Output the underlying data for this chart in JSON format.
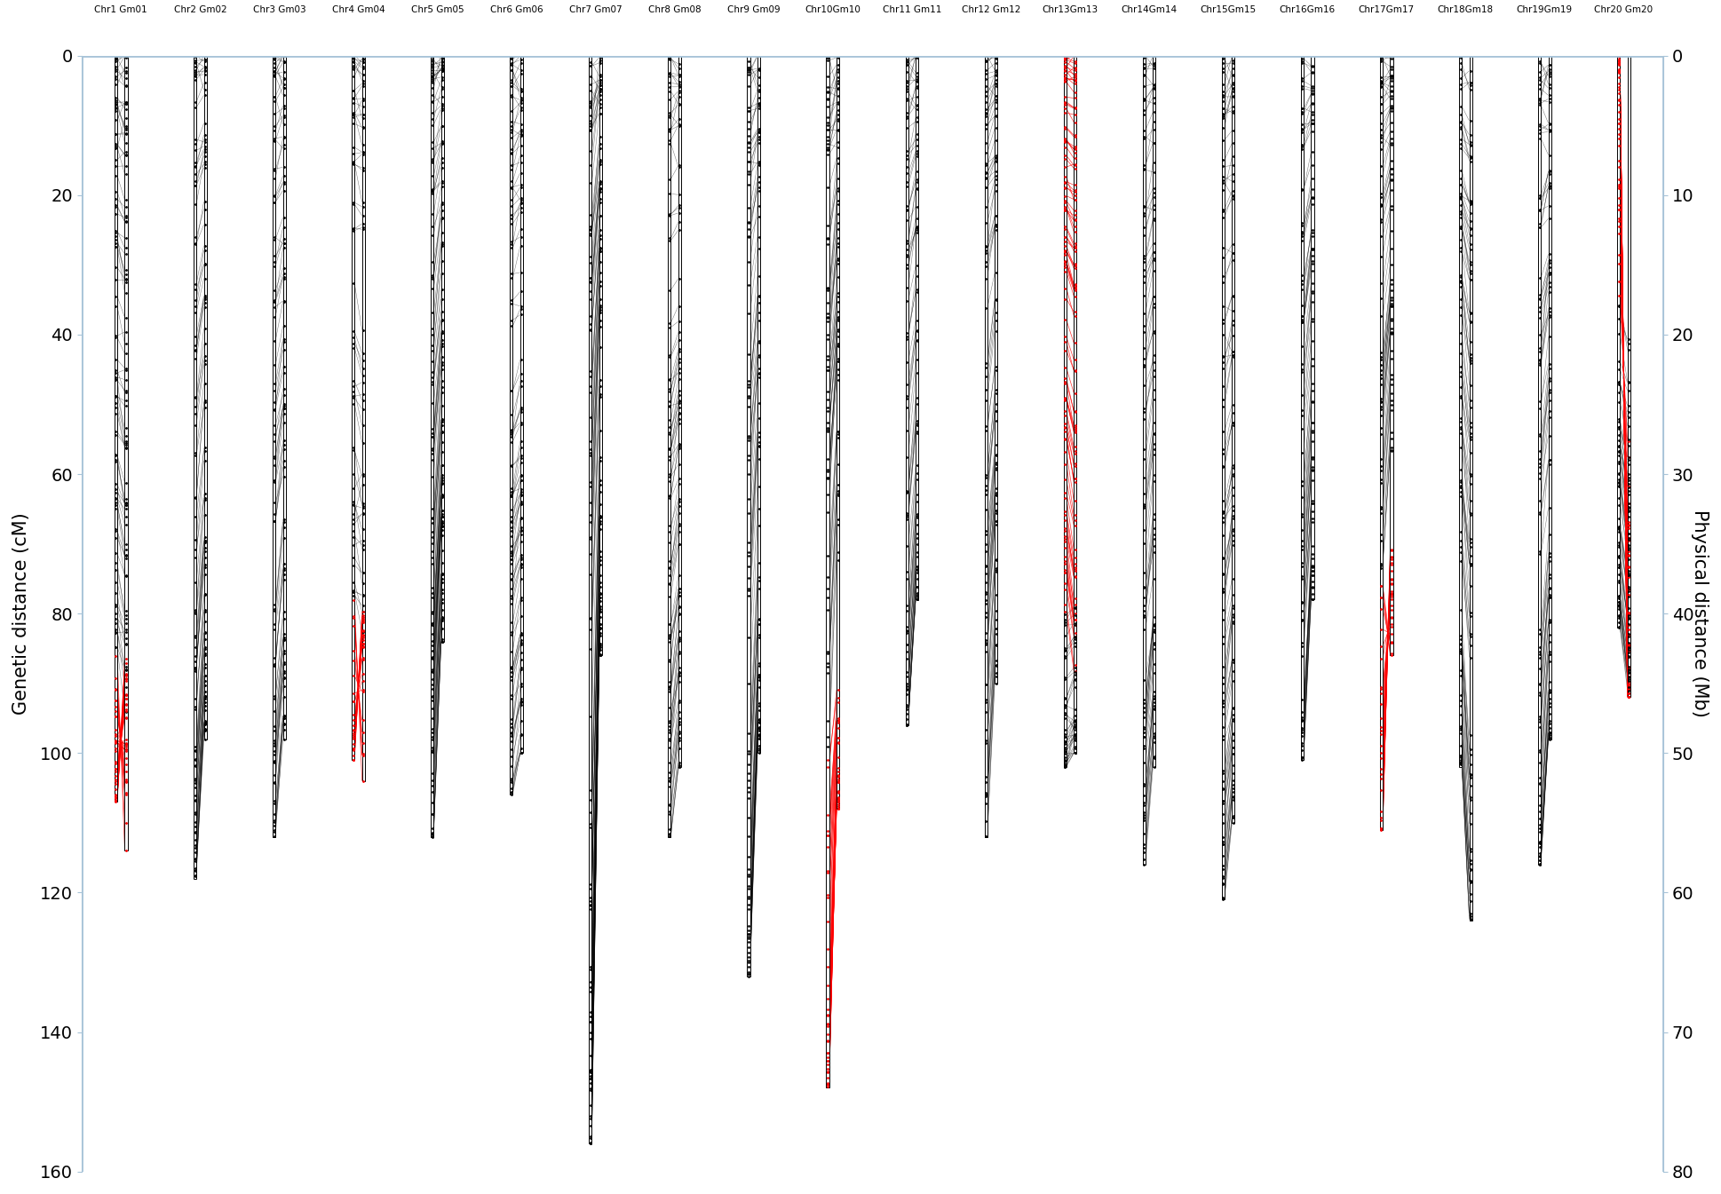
{
  "title_labels": [
    "Chr1 Gm01",
    "Chr2 Gm02",
    "Chr3 Gm03",
    "Chr4 Gm04",
    "Chr5 Gm05",
    "Chr6 Gm06",
    "Chr7 Gm07",
    "Chr8 Gm08",
    "Chr9 Gm09",
    "Chr10Gm10",
    "Chr11 Gm11",
    "Chr12 Gm12",
    "Chr13Gm13",
    "Chr14Gm14",
    "Chr15Gm15",
    "Chr16Gm16",
    "Chr17Gm17",
    "Chr18Gm18",
    "Chr19Gm19",
    "Chr20 Gm20"
  ],
  "n_chromosomes": 20,
  "genetic_max": 160,
  "physical_max": 80,
  "left_ylabel": "Genetic distance (cM)",
  "right_ylabel": "Physical distance (Mb)",
  "bg_color": "#ffffff",
  "spine_color": "#a8c4d8",
  "chr_data": [
    {
      "cm_max": 107,
      "mb_max": 57,
      "n_markers": 130,
      "red_cm": [
        [
          85,
          107
        ]
      ],
      "red_mb": [
        [
          44,
          57
        ]
      ],
      "red_reversed": [
        true
      ]
    },
    {
      "cm_max": 118,
      "mb_max": 49,
      "n_markers": 100,
      "red_cm": [],
      "red_mb": [],
      "red_reversed": []
    },
    {
      "cm_max": 112,
      "mb_max": 49,
      "n_markers": 95,
      "red_cm": [],
      "red_mb": [],
      "red_reversed": []
    },
    {
      "cm_max": 101,
      "mb_max": 52,
      "n_markers": 90,
      "red_cm": [
        [
          78,
          101
        ]
      ],
      "red_mb": [
        [
          40,
          52
        ]
      ],
      "red_reversed": [
        true
      ]
    },
    {
      "cm_max": 112,
      "mb_max": 42,
      "n_markers": 120,
      "red_cm": [],
      "red_mb": [],
      "red_reversed": []
    },
    {
      "cm_max": 106,
      "mb_max": 50,
      "n_markers": 110,
      "red_cm": [],
      "red_mb": [],
      "red_reversed": []
    },
    {
      "cm_max": 156,
      "mb_max": 43,
      "n_markers": 105,
      "red_cm": [],
      "red_mb": [],
      "red_reversed": []
    },
    {
      "cm_max": 112,
      "mb_max": 51,
      "n_markers": 100,
      "red_cm": [],
      "red_mb": [],
      "red_reversed": []
    },
    {
      "cm_max": 132,
      "mb_max": 50,
      "n_markers": 95,
      "red_cm": [],
      "red_mb": [],
      "red_reversed": []
    },
    {
      "cm_max": 148,
      "mb_max": 54,
      "n_markers": 110,
      "red_cm": [
        [
          100,
          148
        ]
      ],
      "red_mb": [
        [
          45,
          54
        ]
      ],
      "red_reversed": [
        false
      ]
    },
    {
      "cm_max": 96,
      "mb_max": 39,
      "n_markers": 85,
      "red_cm": [],
      "red_mb": [],
      "red_reversed": []
    },
    {
      "cm_max": 112,
      "mb_max": 45,
      "n_markers": 90,
      "red_cm": [],
      "red_mb": [],
      "red_reversed": []
    },
    {
      "cm_max": 102,
      "mb_max": 50,
      "n_markers": 150,
      "red_cm": [
        [
          0,
          80
        ]
      ],
      "red_mb": [
        [
          0,
          44
        ]
      ],
      "red_reversed": [
        false
      ]
    },
    {
      "cm_max": 116,
      "mb_max": 51,
      "n_markers": 90,
      "red_cm": [],
      "red_mb": [],
      "red_reversed": []
    },
    {
      "cm_max": 121,
      "mb_max": 55,
      "n_markers": 100,
      "red_cm": [],
      "red_mb": [],
      "red_reversed": []
    },
    {
      "cm_max": 101,
      "mb_max": 39,
      "n_markers": 85,
      "red_cm": [],
      "red_mb": [],
      "red_reversed": []
    },
    {
      "cm_max": 111,
      "mb_max": 43,
      "n_markers": 95,
      "red_cm": [
        [
          75,
          111
        ]
      ],
      "red_mb": [
        [
          36,
          43
        ]
      ],
      "red_reversed": [
        true
      ]
    },
    {
      "cm_max": 102,
      "mb_max": 62,
      "n_markers": 100,
      "red_cm": [],
      "red_mb": [],
      "red_reversed": []
    },
    {
      "cm_max": 116,
      "mb_max": 49,
      "n_markers": 95,
      "red_cm": [],
      "red_mb": [],
      "red_reversed": []
    },
    {
      "cm_max": 82,
      "mb_max": 46,
      "n_markers": 120,
      "red_cm": [
        [
          0,
          35
        ]
      ],
      "red_mb": [
        [
          28,
          46
        ]
      ],
      "red_reversed": [
        true
      ]
    }
  ]
}
